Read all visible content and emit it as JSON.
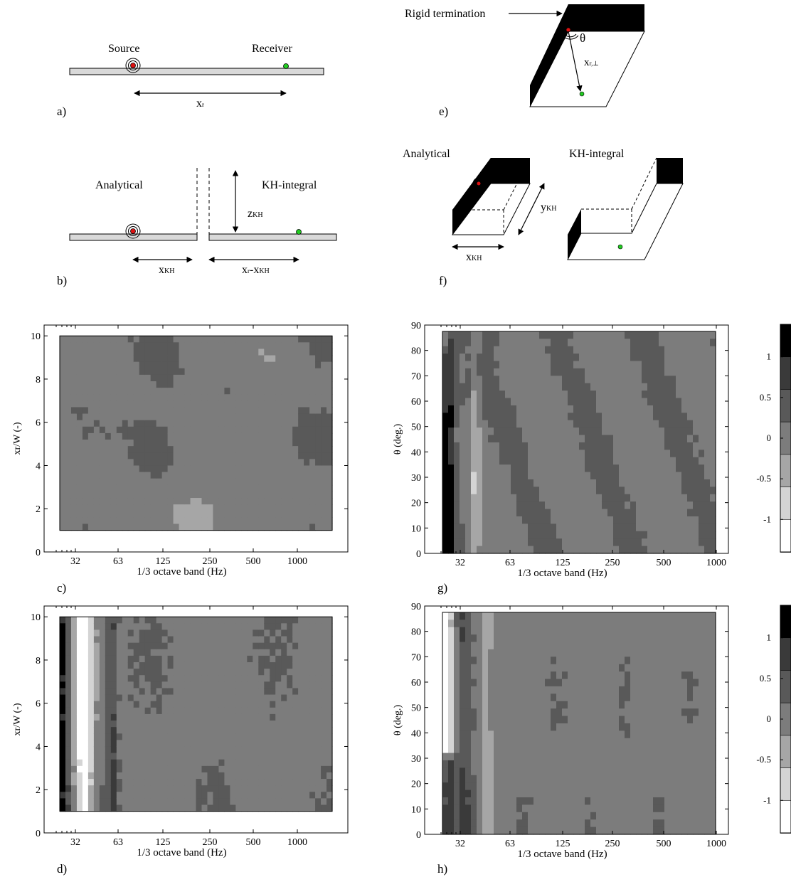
{
  "panel_labels": [
    "a)",
    "b)",
    "c)",
    "d)",
    "e)",
    "f)",
    "g)",
    "h)"
  ],
  "diagram_a": {
    "source": "Source",
    "receiver": "Receiver",
    "distance": "x",
    "distance_sub": "r"
  },
  "diagram_b": {
    "left": "Analytical",
    "right": "KH-integral",
    "z": "z",
    "z_sub": "KH",
    "x1": "x",
    "x1_sub": "KH",
    "x2a": "x",
    "x2a_sub": "r",
    "x2b": "-x",
    "x2b_sub": "KH"
  },
  "diagram_e": {
    "termination": "Rigid termination",
    "angle": "θ",
    "dist": "x",
    "dist_sub": "r,⊥"
  },
  "diagram_f": {
    "left": "Analytical",
    "right": "KH-integral",
    "y": "y",
    "y_sub": "KH",
    "x": "x",
    "x_sub": "KH"
  },
  "colors": {
    "source": "#dd1111",
    "receiver": "#22cc22",
    "plate": "#d9d9d9",
    "levels": [
      "#000000",
      "#3a3a3a",
      "#595959",
      "#7c7c7c",
      "#a6a6a6",
      "#d4d4d4",
      "#ffffff"
    ]
  },
  "colorbar": {
    "ticks": [
      "1",
      "0.5",
      "0",
      "-0.5",
      "-1"
    ]
  },
  "chart_data": [
    {
      "panel": "c)",
      "type": "heatmap",
      "xlabel": "1/3 octave band (Hz)",
      "ylabel": "xr/W (-)",
      "xticks": [
        "32",
        "63",
        "125",
        "250",
        "500",
        "1000"
      ],
      "yticks": [
        "0",
        "2",
        "4",
        "6",
        "8",
        "10"
      ],
      "ylim": [
        0,
        10.5
      ],
      "data_extent": {
        "y": [
          1,
          10
        ]
      }
    },
    {
      "panel": "d)",
      "type": "heatmap",
      "xlabel": "1/3 octave band (Hz)",
      "ylabel": "xr/W (-)",
      "xticks": [
        "32",
        "63",
        "125",
        "250",
        "500",
        "1000"
      ],
      "yticks": [
        "0",
        "2",
        "4",
        "6",
        "8",
        "10"
      ],
      "ylim": [
        0,
        10.5
      ],
      "data_extent": {
        "y": [
          1,
          10
        ]
      }
    },
    {
      "panel": "g)",
      "type": "heatmap",
      "xlabel": "1/3 octave band (Hz)",
      "ylabel": "θ (deg.)",
      "xticks": [
        "32",
        "63",
        "125",
        "250",
        "500",
        "1000"
      ],
      "yticks": [
        "0",
        "10",
        "20",
        "30",
        "40",
        "50",
        "60",
        "70",
        "80",
        "90"
      ],
      "ylim": [
        0,
        90
      ],
      "data_extent": {
        "y": [
          0,
          87.5
        ]
      }
    },
    {
      "panel": "h)",
      "type": "heatmap",
      "xlabel": "1/3 octave band (Hz)",
      "ylabel": "θ (deg.)",
      "xticks": [
        "32",
        "63",
        "125",
        "250",
        "500",
        "1000"
      ],
      "yticks": [
        "0",
        "10",
        "20",
        "30",
        "40",
        "50",
        "60",
        "70",
        "80",
        "90"
      ],
      "ylim": [
        0,
        90
      ],
      "data_extent": {
        "y": [
          0,
          87.5
        ]
      }
    }
  ]
}
